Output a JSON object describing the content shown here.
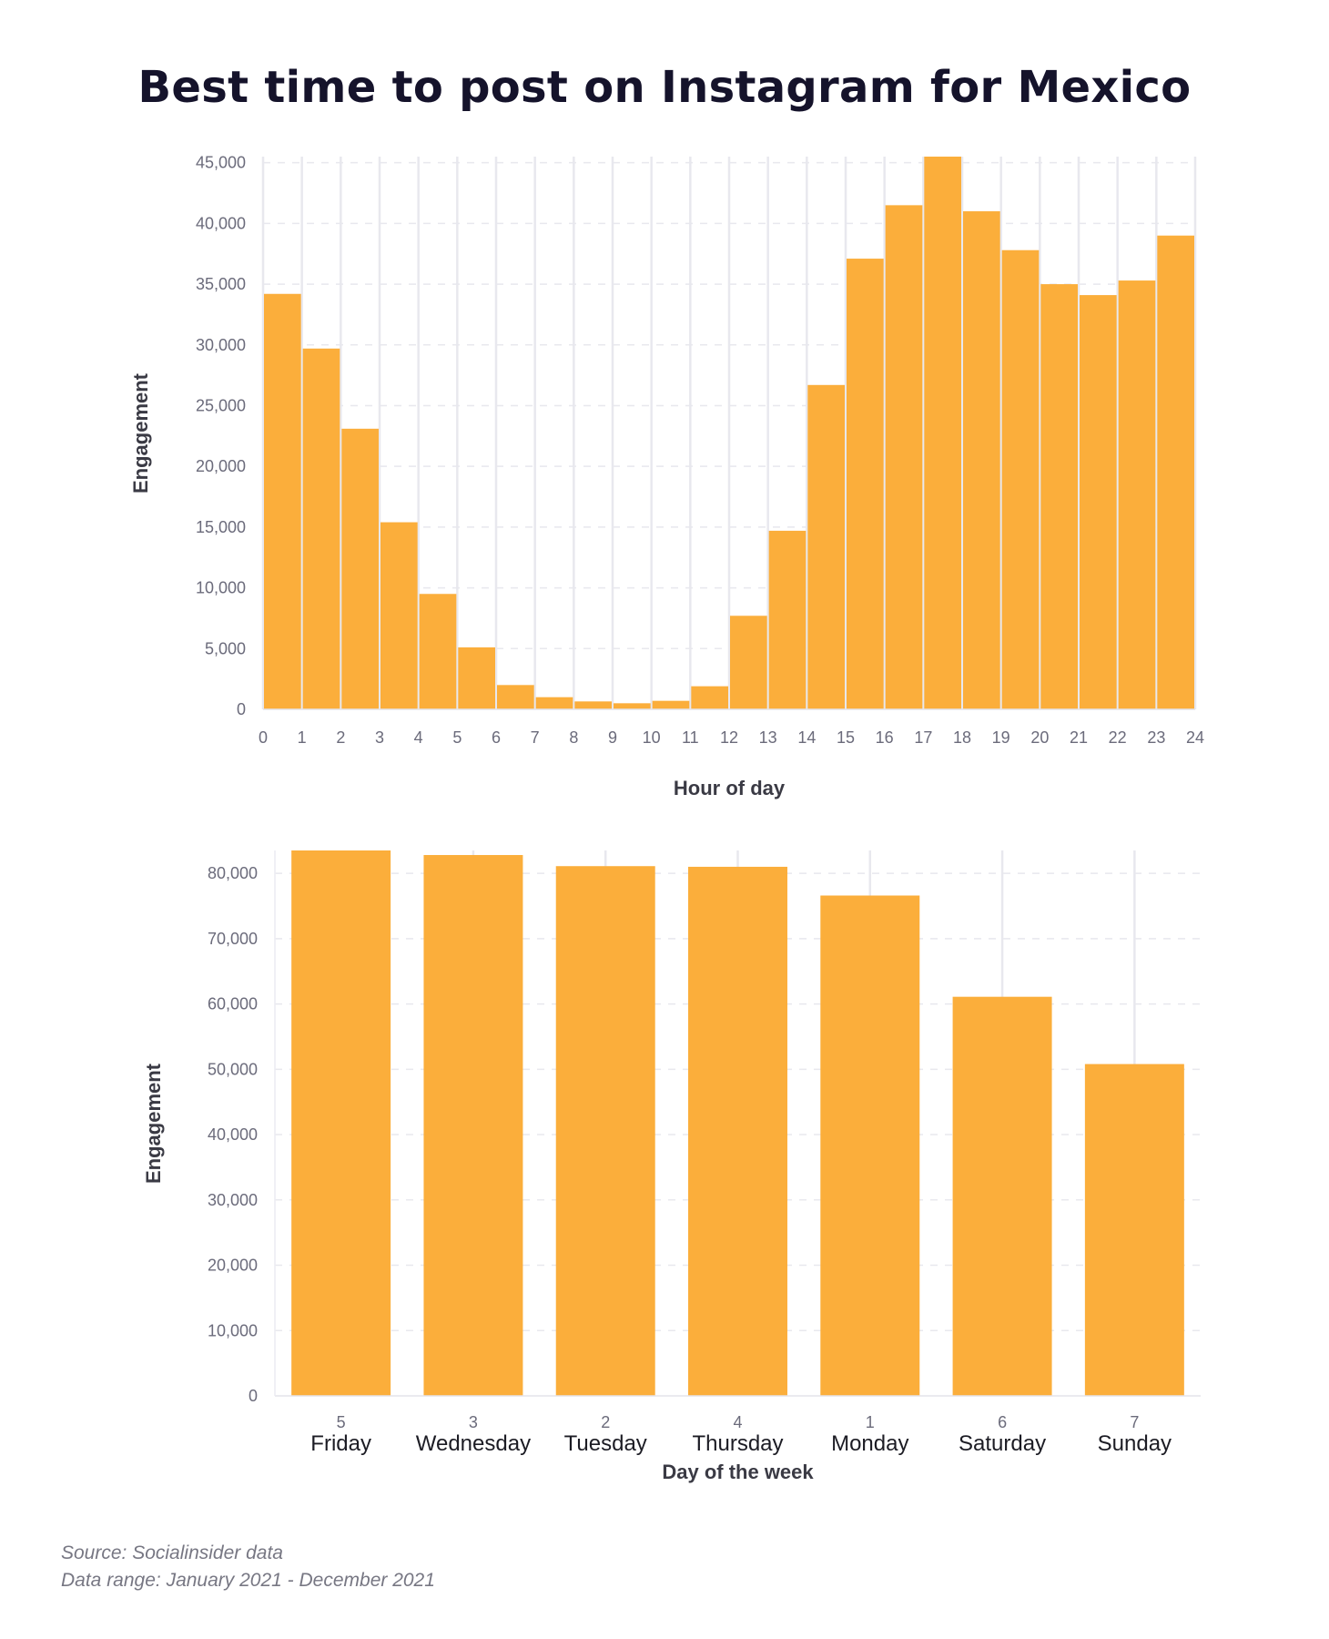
{
  "title": "Best time to post on Instagram for Mexico",
  "colors": {
    "bar": "#FBAE3B",
    "grid": "#e8e8ee",
    "text": "#15132b"
  },
  "chart_data": [
    {
      "type": "bar",
      "xlabel": "Hour of day",
      "ylabel": "Engagement",
      "ylim": [
        0,
        45500
      ],
      "y_ticks": [
        0,
        5000,
        10000,
        15000,
        20000,
        25000,
        30000,
        35000,
        40000,
        45000
      ],
      "x_ticks": [
        0,
        1,
        2,
        3,
        4,
        5,
        6,
        7,
        8,
        9,
        10,
        11,
        12,
        13,
        14,
        15,
        16,
        17,
        18,
        19,
        20,
        21,
        22,
        23,
        24
      ],
      "bins": [
        0,
        1,
        2,
        3,
        4,
        5,
        6,
        7,
        8,
        9,
        10,
        11,
        12,
        13,
        14,
        15,
        16,
        17,
        18,
        19,
        20,
        21,
        22,
        23
      ],
      "values": [
        34200,
        29700,
        23100,
        15400,
        9500,
        5100,
        2000,
        1000,
        650,
        500,
        700,
        1900,
        7700,
        14700,
        26700,
        37100,
        41500,
        45500,
        41000,
        37800,
        35000,
        34100,
        35300,
        39000
      ],
      "grid": "vertical and dashed horizontal"
    },
    {
      "type": "bar",
      "xlabel": "Day of the week",
      "ylabel": "Engagement",
      "ylim": [
        0,
        83500
      ],
      "y_ticks": [
        0,
        10000,
        20000,
        30000,
        40000,
        50000,
        60000,
        70000,
        80000
      ],
      "categories": [
        "Friday",
        "Wednesday",
        "Tuesday",
        "Thursday",
        "Monday",
        "Saturday",
        "Sunday"
      ],
      "day_numbers": [
        "5",
        "3",
        "2",
        "4",
        "1",
        "6",
        "7"
      ],
      "values": [
        83500,
        82800,
        81100,
        81000,
        76600,
        61100,
        50800
      ],
      "grid": "vertical and dashed horizontal"
    }
  ],
  "footer": {
    "source": "Source: Socialinsider data",
    "range": "Data range: January 2021 - December 2021"
  }
}
